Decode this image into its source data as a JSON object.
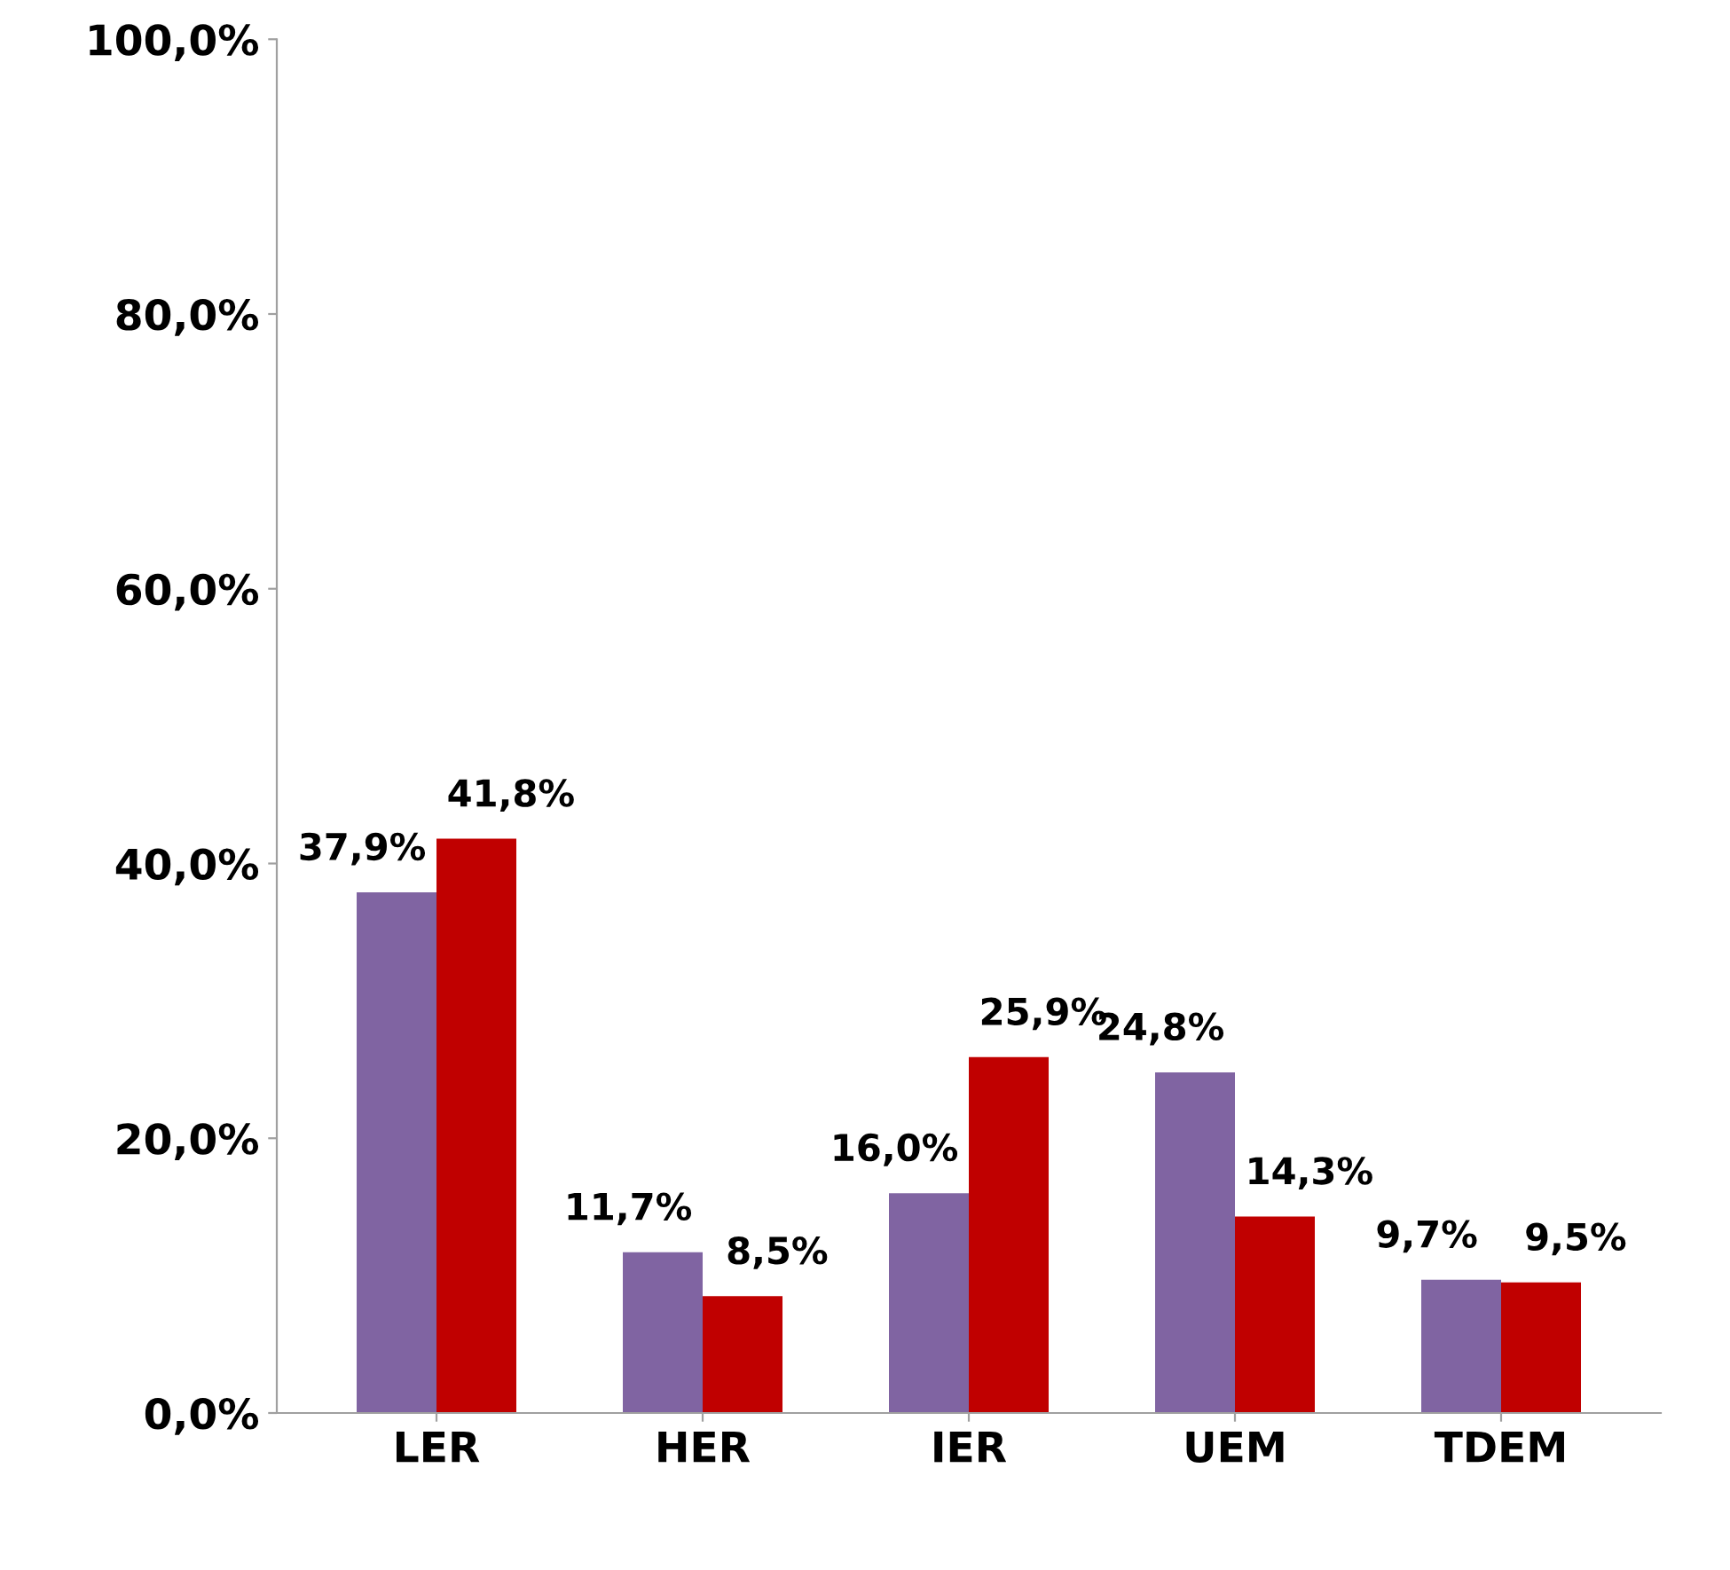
{
  "chart_data": {
    "type": "bar",
    "categories": [
      "LER",
      "HER",
      "IER",
      "UEM",
      "TDEM"
    ],
    "series": [
      {
        "color": "#8064a2",
        "values": [
          37.9,
          11.7,
          16.0,
          24.8,
          9.7
        ],
        "value_labels": [
          "37,9%",
          "11,7%",
          "16,0%",
          "24,8%",
          "9,7%"
        ]
      },
      {
        "color": "#c00000",
        "values": [
          41.8,
          8.5,
          25.9,
          14.3,
          9.5
        ],
        "value_labels": [
          "41,8%",
          "8,5%",
          "25,9%",
          "14,3%",
          "9,5%"
        ]
      }
    ],
    "ylim": [
      0,
      100
    ],
    "yticks": [
      {
        "value": 0,
        "label": "0,0%"
      },
      {
        "value": 20,
        "label": "20,0%"
      },
      {
        "value": 40,
        "label": "40,0%"
      },
      {
        "value": 60,
        "label": "60,0%"
      },
      {
        "value": 80,
        "label": "80,0%"
      },
      {
        "value": 100,
        "label": "100,0%"
      }
    ],
    "grid": false
  }
}
